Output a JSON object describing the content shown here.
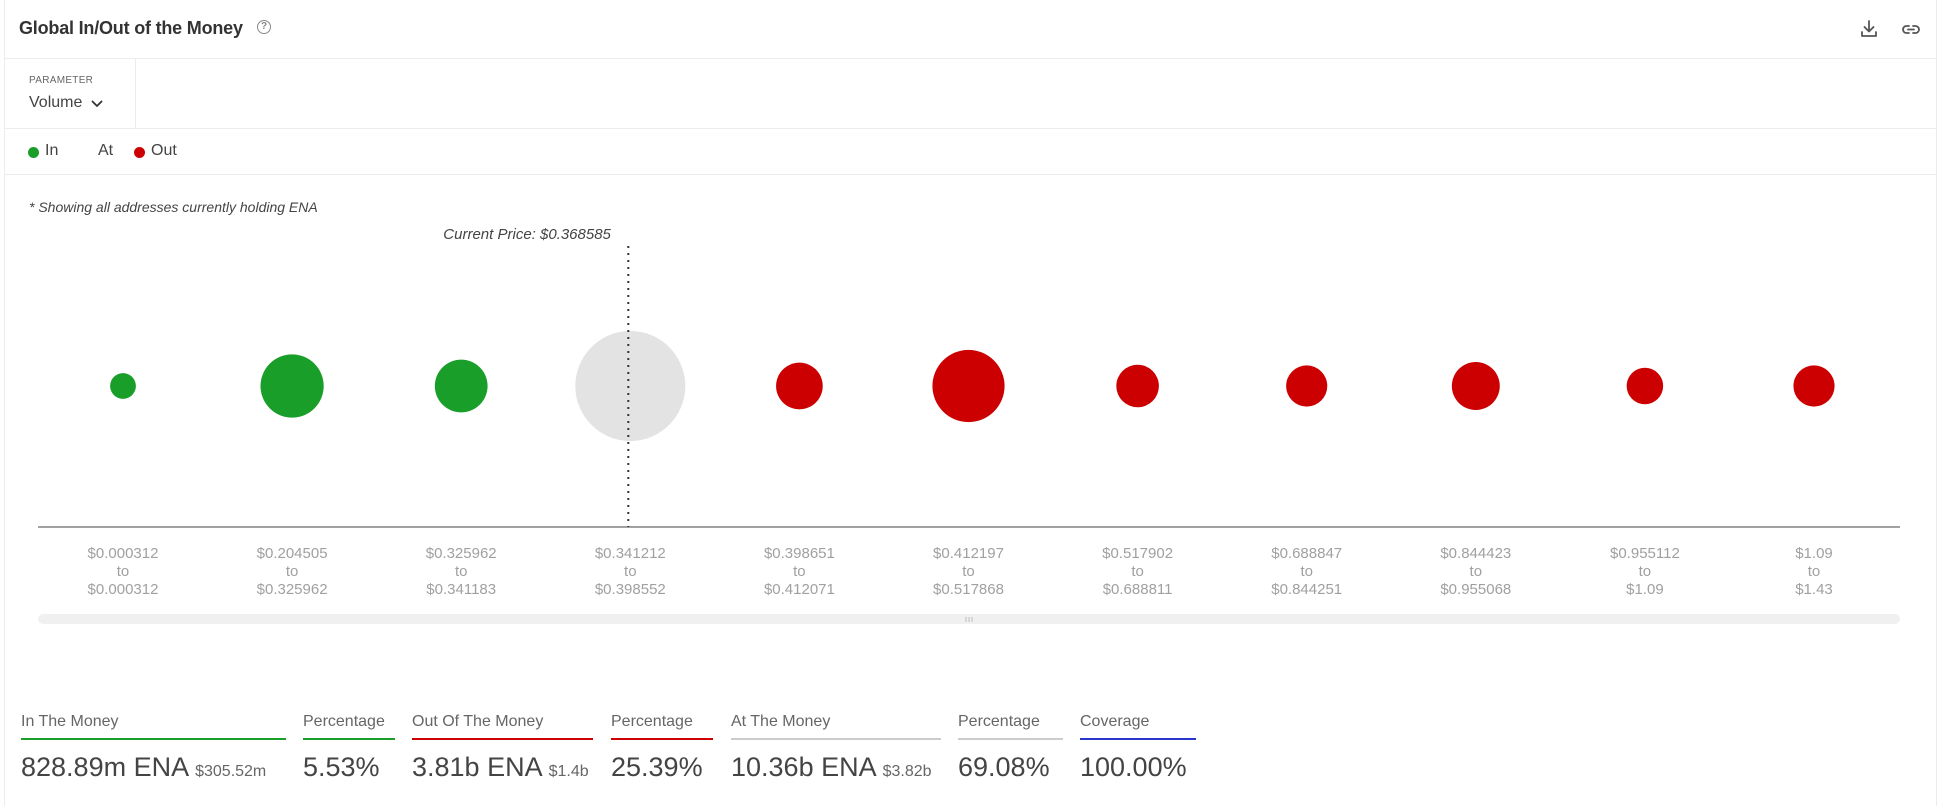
{
  "header": {
    "title": "Global In/Out of the Money",
    "help_glyph": "?",
    "icons": [
      "download-icon",
      "link-icon"
    ]
  },
  "parameter": {
    "label": "PARAMETER",
    "value": "Volume"
  },
  "legend": {
    "in_label": "In",
    "at_label": "At",
    "out_label": "Out"
  },
  "note": "* Showing all addresses currently holding ENA",
  "current_price_label": "Current Price: $0.368585",
  "colors": {
    "in": "#1a9e2a",
    "at": "#e3e3e3",
    "out": "#cc0000",
    "coverage": "#2a35c9",
    "at_line": "#cccccc"
  },
  "chart_data": {
    "type": "scatter",
    "encoding": "bubble size = volume",
    "current_price": 0.368585,
    "current_price_bucket_index": 3,
    "buckets": [
      {
        "from": "$0.000312",
        "to": "$0.000312",
        "status": "in",
        "relative_size": 0.055
      },
      {
        "from": "$0.204505",
        "to": "$0.325962",
        "status": "in",
        "relative_size": 0.33
      },
      {
        "from": "$0.325962",
        "to": "$0.341183",
        "status": "in",
        "relative_size": 0.23
      },
      {
        "from": "$0.341212",
        "to": "$0.398552",
        "status": "at",
        "relative_size": 1.0
      },
      {
        "from": "$0.398651",
        "to": "$0.412071",
        "status": "out",
        "relative_size": 0.18
      },
      {
        "from": "$0.412197",
        "to": "$0.517868",
        "status": "out",
        "relative_size": 0.43
      },
      {
        "from": "$0.517902",
        "to": "$0.688811",
        "status": "out",
        "relative_size": 0.15
      },
      {
        "from": "$0.688847",
        "to": "$0.844251",
        "status": "out",
        "relative_size": 0.14
      },
      {
        "from": "$0.844423",
        "to": "$0.955068",
        "status": "out",
        "relative_size": 0.19
      },
      {
        "from": "$0.955112",
        "to": "$1.09",
        "status": "out",
        "relative_size": 0.11
      },
      {
        "from": "$1.09",
        "to": "$1.43",
        "status": "out",
        "relative_size": 0.14
      }
    ],
    "range_separator": "to"
  },
  "summary": [
    {
      "label": "In The Money",
      "value": "828.89m ENA",
      "sub": "$305.52m",
      "color_key": "in"
    },
    {
      "label": "Percentage",
      "value": "5.53%",
      "sub": "",
      "color_key": "in"
    },
    {
      "label": "Out Of The Money",
      "value": "3.81b ENA",
      "sub": "$1.4b",
      "color_key": "out"
    },
    {
      "label": "Percentage",
      "value": "25.39%",
      "sub": "",
      "color_key": "out"
    },
    {
      "label": "At The Money",
      "value": "10.36b ENA",
      "sub": "$3.82b",
      "color_key": "at_line"
    },
    {
      "label": "Percentage",
      "value": "69.08%",
      "sub": "",
      "color_key": "at_line"
    },
    {
      "label": "Coverage",
      "value": "100.00%",
      "sub": "",
      "color_key": "coverage"
    }
  ]
}
